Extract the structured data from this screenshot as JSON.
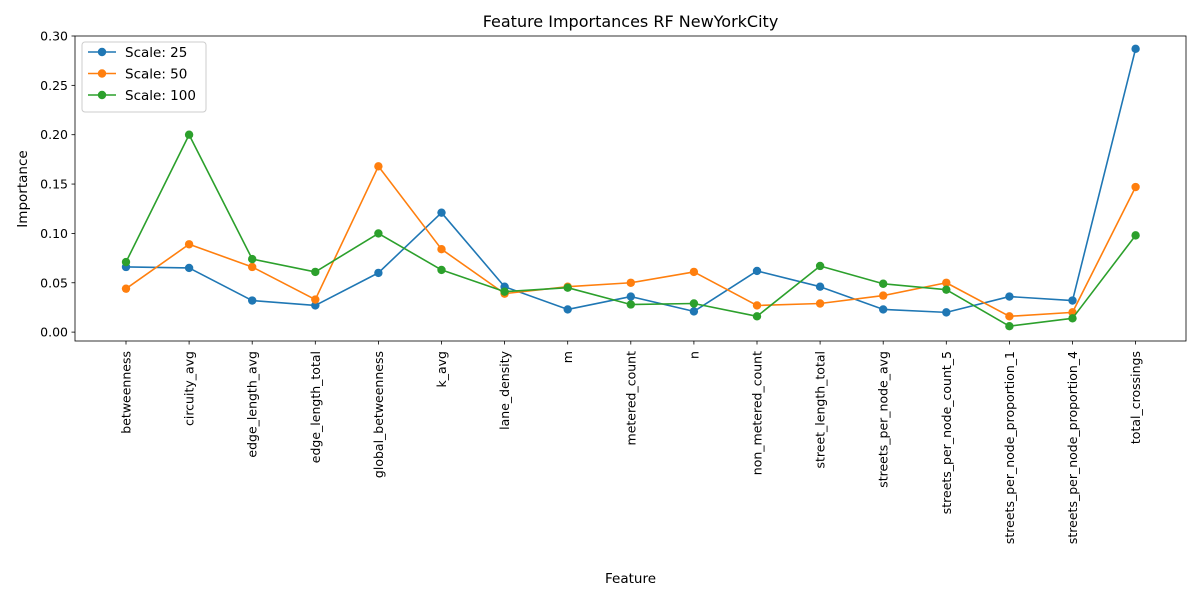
{
  "chart_data": {
    "type": "line",
    "title": "Feature Importances RF NewYorkCity",
    "xlabel": "Feature",
    "ylabel": "Importance",
    "ylim": [
      -0.009,
      0.3
    ],
    "yticks": [
      0.0,
      0.05,
      0.1,
      0.15,
      0.2,
      0.25,
      0.3
    ],
    "ytick_labels": [
      "0.00",
      "0.05",
      "0.10",
      "0.15",
      "0.20",
      "0.25",
      "0.30"
    ],
    "grid": false,
    "legend_position": "upper-left",
    "categories": [
      "betweenness",
      "circuity_avg",
      "edge_length_avg",
      "edge_length_total",
      "global_betweenness",
      "k_avg",
      "lane_density",
      "m",
      "metered_count",
      "n",
      "non_metered_count",
      "street_length_total",
      "streets_per_node_avg",
      "streets_per_node_count_5",
      "streets_per_node_proportion_1",
      "streets_per_node_proportion_4",
      "total_crossings"
    ],
    "series": [
      {
        "name": "Scale: 25",
        "color": "#1f77b4",
        "values": [
          0.066,
          0.065,
          0.032,
          0.027,
          0.06,
          0.121,
          0.046,
          0.023,
          0.036,
          0.021,
          0.062,
          0.046,
          0.023,
          0.02,
          0.036,
          0.032,
          0.287
        ]
      },
      {
        "name": "Scale: 50",
        "color": "#ff7f0e",
        "values": [
          0.044,
          0.089,
          0.066,
          0.033,
          0.168,
          0.084,
          0.039,
          0.046,
          0.05,
          0.061,
          0.027,
          0.029,
          0.037,
          0.05,
          0.016,
          0.02,
          0.147
        ]
      },
      {
        "name": "Scale: 100",
        "color": "#2ca02c",
        "values": [
          0.071,
          0.2,
          0.074,
          0.061,
          0.1,
          0.063,
          0.041,
          0.045,
          0.028,
          0.029,
          0.016,
          0.067,
          0.049,
          0.043,
          0.006,
          0.014,
          0.098
        ]
      }
    ]
  }
}
